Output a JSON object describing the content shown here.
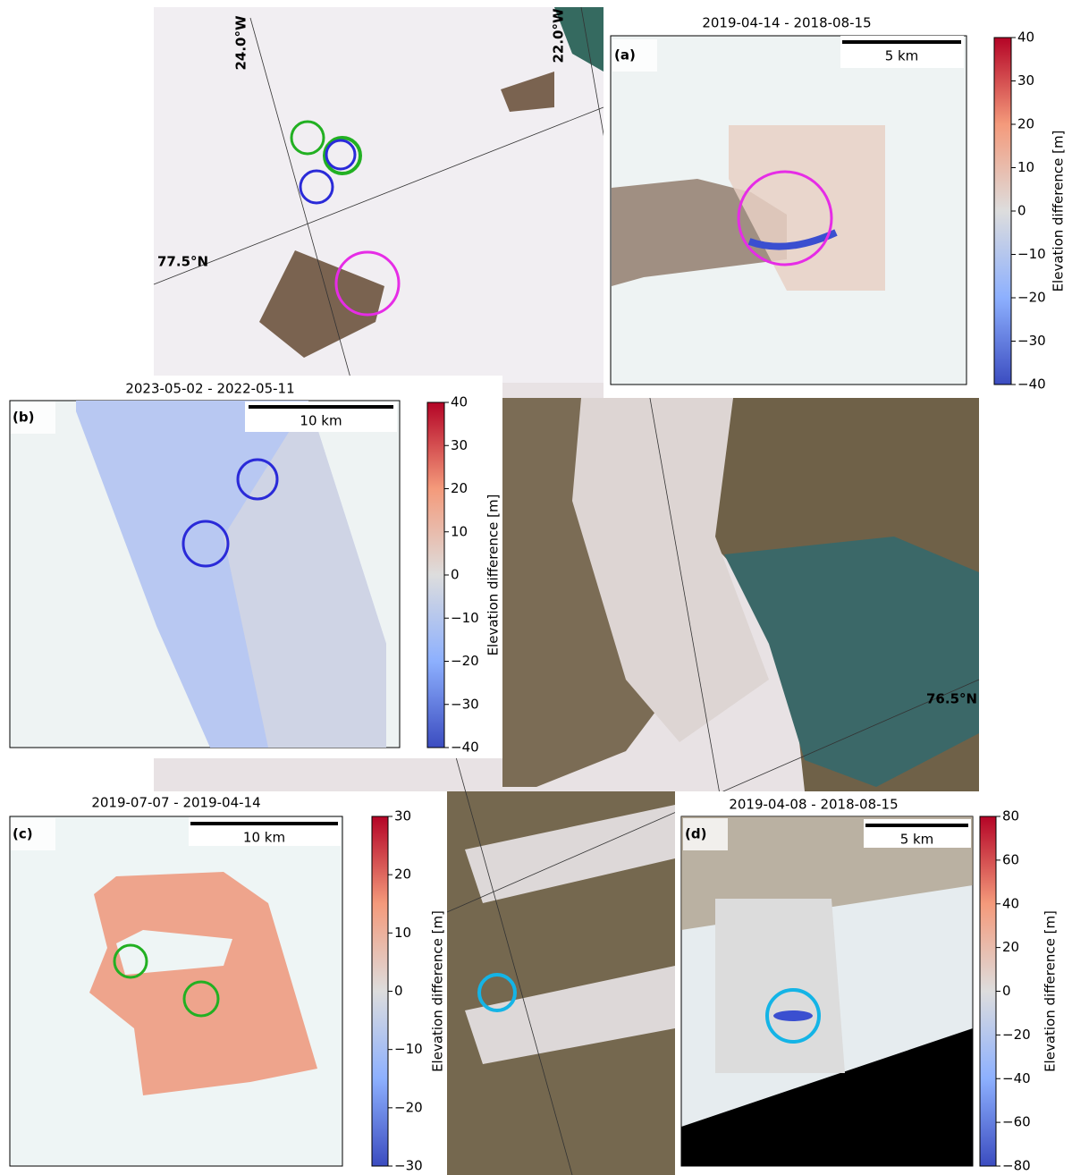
{
  "map": {
    "graticule_labels": [
      "24.0°W",
      "22.0°W",
      "77.5°N",
      "76.5°N"
    ]
  },
  "panels": [
    {
      "label": "(a)",
      "title": "2019-04-14 - 2018-08-15",
      "scale_bar": "5 km",
      "colorbar": {
        "label": "Elevation difference [m]",
        "lim": [
          -40,
          40
        ],
        "ticks": [
          {
            "value": -40,
            "label": "−40"
          },
          {
            "value": -30,
            "label": "−30"
          },
          {
            "value": -20,
            "label": "−20"
          },
          {
            "value": -10,
            "label": "−10"
          },
          0,
          10,
          20,
          30,
          40
        ]
      }
    },
    {
      "label": "(b)",
      "title": "2023-05-02 - 2022-05-11",
      "scale_bar": "10 km",
      "colorbar": {
        "label": "Elevation difference [m]",
        "lim": [
          -40,
          40
        ],
        "ticks": [
          {
            "value": -40,
            "label": "−40"
          },
          {
            "value": -30,
            "label": "−30"
          },
          {
            "value": -20,
            "label": "−20"
          },
          {
            "value": -10,
            "label": "−10"
          },
          0,
          10,
          20,
          30,
          40
        ]
      }
    },
    {
      "label": "(c)",
      "title": "2019-07-07 - 2019-04-14",
      "scale_bar": "10 km",
      "colorbar": {
        "label": "Elevation difference [m]",
        "lim": [
          -30,
          30
        ],
        "ticks": [
          {
            "value": -30,
            "label": "−30"
          },
          {
            "value": -20,
            "label": "−20"
          },
          {
            "value": -10,
            "label": "−10"
          },
          0,
          10,
          20,
          30
        ]
      }
    },
    {
      "label": "(d)",
      "title": "2019-04-08 - 2018-08-15",
      "scale_bar": "5 km",
      "colorbar": {
        "label": "Elevation difference [m]",
        "lim": [
          -80,
          80
        ],
        "ticks": [
          {
            "value": -80,
            "label": "−80"
          },
          {
            "value": -60,
            "label": "−60"
          },
          {
            "value": -40,
            "label": "−40"
          },
          {
            "value": -20,
            "label": "−20"
          },
          0,
          20,
          40,
          60,
          80
        ]
      }
    }
  ]
}
